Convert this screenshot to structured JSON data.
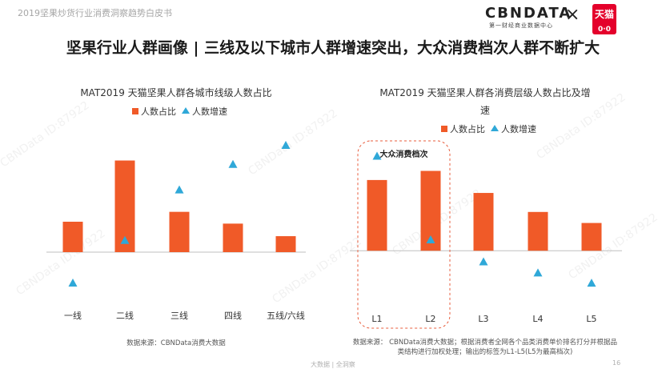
{
  "header": {
    "report_name": "2019坚果炒货行业消费洞察趋势白皮书",
    "brand_name": "CBNDATA",
    "brand_sub": "第一财经商业数据中心",
    "times_sign": "×",
    "partner_logo_text": "天猫",
    "partner_logo_eyes": "0·0"
  },
  "title": "坚果行业人群画像 | 三线及以下城市人群增速突出，大众消费档次人群不断扩大",
  "watermark": "CBNData ID:87922",
  "chart_data": [
    {
      "type": "bar",
      "title": "MAT2019 天猫坚果人群各城市线级人数占比",
      "categories": [
        "一线",
        "二线",
        "三线",
        "四线",
        "五线/六线"
      ],
      "series": [
        {
          "name": "人数占比",
          "kind": "bar",
          "color": "#f05a28",
          "values": [
            8,
            24.1,
            10.6,
            7.5,
            4.2
          ]
        },
        {
          "name": "人数增速",
          "kind": "marker",
          "marker": "triangle",
          "color": "#2fa8d8",
          "values": [
            -8,
            3.2,
            16.5,
            23.2,
            28.2
          ]
        }
      ],
      "yaxis_visible": false,
      "baseline": 0,
      "ylim": [
        -12,
        32
      ],
      "legend_position": "top",
      "source": "数据来源：CBNData消费大数据"
    },
    {
      "type": "bar",
      "title_lines": [
        "MAT2019 天猫坚果人群各消费层级人数占比及增",
        "速"
      ],
      "categories": [
        "L1",
        "L2",
        "L3",
        "L4",
        "L5"
      ],
      "series": [
        {
          "name": "人数占比",
          "kind": "bar",
          "color": "#f05a28",
          "values": [
            18.6,
            21.0,
            15.2,
            10.2,
            7.3
          ]
        },
        {
          "name": "人数增速",
          "kind": "marker",
          "marker": "triangle",
          "color": "#2fa8d8",
          "values": [
            25.0,
            3.0,
            -2.8,
            -5.7,
            -8.4
          ]
        }
      ],
      "yaxis_visible": false,
      "baseline": 0,
      "ylim": [
        -13,
        31
      ],
      "legend_position": "top",
      "highlight": {
        "label": "大众消费档次",
        "categories": [
          "L1",
          "L2"
        ],
        "style": "dashed-rounded-box"
      },
      "source_lines": [
        "数据来源：  CBNData消费大数据；根据消费者全网各个品类消费单价排名打分并根据品",
        "类结构进行加权处理；输出的标签为L1-L5(L5为最高档次)"
      ]
    }
  ],
  "footer": {
    "text": "大数据 | 全洞察",
    "page_number": "16"
  },
  "colors": {
    "bar": "#f05a28",
    "marker": "#2fa8d8",
    "axis": "#bfbfbf",
    "highlight_border": "#e85c3c"
  }
}
